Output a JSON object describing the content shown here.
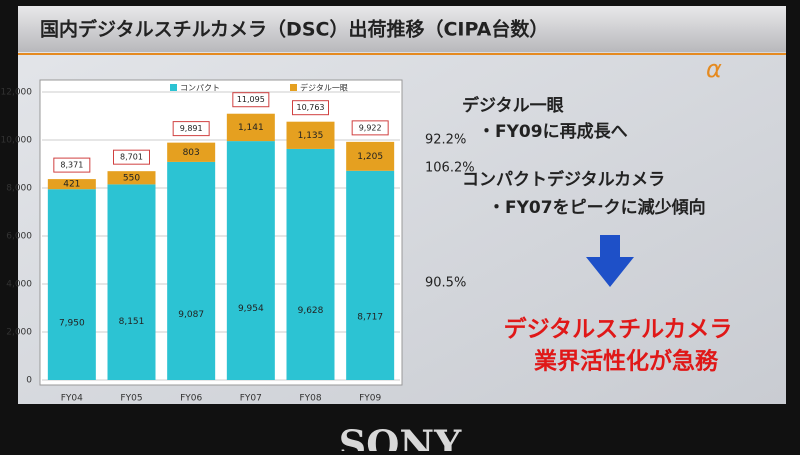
{
  "chart_data": {
    "type": "stacked_bar",
    "title": "国内デジタルスチルカメラ（DSC）出荷推移（CIPA台数）",
    "logo": "α",
    "categories": [
      "FY04",
      "FY05",
      "FY06",
      "FY07",
      "FY08",
      "FY09"
    ],
    "series": [
      {
        "name": "コンパクト",
        "color": "#2cc3d3",
        "values": [
          7950,
          8151,
          9087,
          9954,
          9628,
          8717
        ],
        "value_labels": [
          "7,950",
          "8,151",
          "9,087",
          "9,954",
          "9,628",
          "8,717"
        ]
      },
      {
        "name": "デジタル一眼",
        "color": "#e5a020",
        "values": [
          421,
          550,
          803,
          1141,
          1135,
          1205
        ],
        "value_labels": [
          "421",
          "550",
          "803",
          "1,141",
          "1,135",
          "1,205"
        ]
      }
    ],
    "totals": {
      "values": [
        8371,
        8701,
        9891,
        11095,
        10763,
        9922
      ],
      "value_labels": [
        "8,371",
        "8,701",
        "9,891",
        "11,095",
        "10,763",
        "9,922"
      ]
    },
    "ylim": [
      0,
      12000
    ],
    "yticks": [
      0,
      {
        "value": 2000,
        "label": "2,000"
      },
      {
        "value": 4000,
        "label": "4,000"
      },
      {
        "value": 6000,
        "label": "6,000"
      },
      {
        "value": 8000,
        "label": "8,000"
      },
      {
        "value": 10000,
        "label": "10,000"
      },
      {
        "value": 12000,
        "label": "12,000"
      }
    ],
    "grid": true,
    "annotations": [
      "92.2%",
      "106.2%",
      "90.5%"
    ],
    "notes": [
      "デジタル一眼",
      "・FY09に再成長へ",
      "コンパクトデジタルカメラ",
      "・FY07をピークに減少傾向"
    ],
    "conclusion": [
      "デジタルスチルカメラ",
      "業界活性化が急務"
    ],
    "brand": "SONY"
  }
}
